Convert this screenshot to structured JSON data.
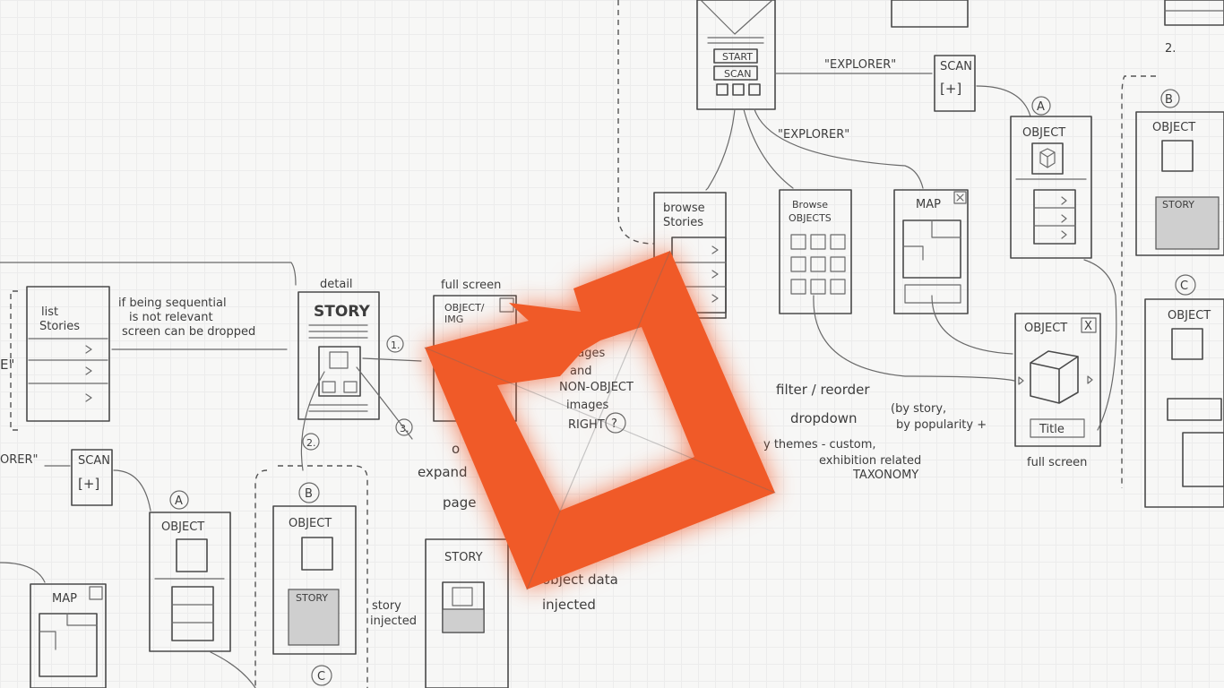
{
  "screens": {
    "home": {
      "start": "START",
      "scan": "SCAN"
    },
    "list_stories": {
      "title_l1": "list",
      "title_l2": "Stories"
    },
    "story_detail": {
      "caption": "detail",
      "title": "STORY"
    },
    "fullscreen_object": {
      "caption": "full screen",
      "title_l1": "OBJECT/",
      "title_l2": "IMG"
    },
    "browse_stories": {
      "title_l1": "browse",
      "title_l2": "Stories"
    },
    "browse_objects": {
      "title_l1": "Browse",
      "title_l2": "OBJECTS"
    },
    "map_top": {
      "title": "MAP"
    },
    "map_bottom": {
      "title": "MAP"
    },
    "scan_top": {
      "title": "SCAN",
      "glyph": "[+]"
    },
    "scan_bottom": {
      "title": "SCAN",
      "glyph": "[+]"
    },
    "object_a_top": {
      "badge": "A",
      "title": "OBJECT"
    },
    "object_b_top": {
      "badge": "B",
      "title": "OBJECT",
      "story": "STORY"
    },
    "object_c_top": {
      "badge": "C",
      "title": "OBJECT"
    },
    "object_full": {
      "title": "OBJECT",
      "close": "X",
      "caption": "Title",
      "below": "full screen"
    },
    "object_a_bottom": {
      "badge": "A",
      "title": "OBJECT"
    },
    "object_b_bottom": {
      "badge": "B",
      "title": "OBJECT",
      "story": "STORY"
    },
    "object_c_bottom": {
      "badge": "C"
    },
    "story_bottom": {
      "title": "STORY"
    }
  },
  "notes": {
    "explorer_1": "\"EXPLORER\"",
    "explorer_2": "\"EXPLORER\"",
    "explorer_left": "ORER\"",
    "explorer_left_top": "E\"",
    "sequential_1": "if being sequential",
    "sequential_2": "is not relevant",
    "sequential_3": "screen can be dropped",
    "step_1": "1.",
    "step_2": "2.",
    "step_3": "3.",
    "step_2_top": "2.",
    "images_1": "images",
    "images_2": "and",
    "images_3": "NON-OBJECT",
    "images_4": "images",
    "images_5": "RIGHT",
    "images_q": "?",
    "expand_1": "o",
    "expand_2": "expand",
    "expand_3": "page",
    "filter_1": "filter / reorder",
    "filter_2": "dropdown",
    "filter_3": "(by story,",
    "filter_4": "by popularity +",
    "filter_5": "y themes - custom,",
    "filter_6": "exhibition related",
    "filter_7": "TAXONOMY",
    "story_injected_1": "story",
    "story_injected_2": "injected",
    "object_injected_1": "object data",
    "object_injected_2": "injected"
  },
  "logo": {
    "name": "orange-square-arrow",
    "color": "#f05a28",
    "glow": "#ff6a3a"
  }
}
